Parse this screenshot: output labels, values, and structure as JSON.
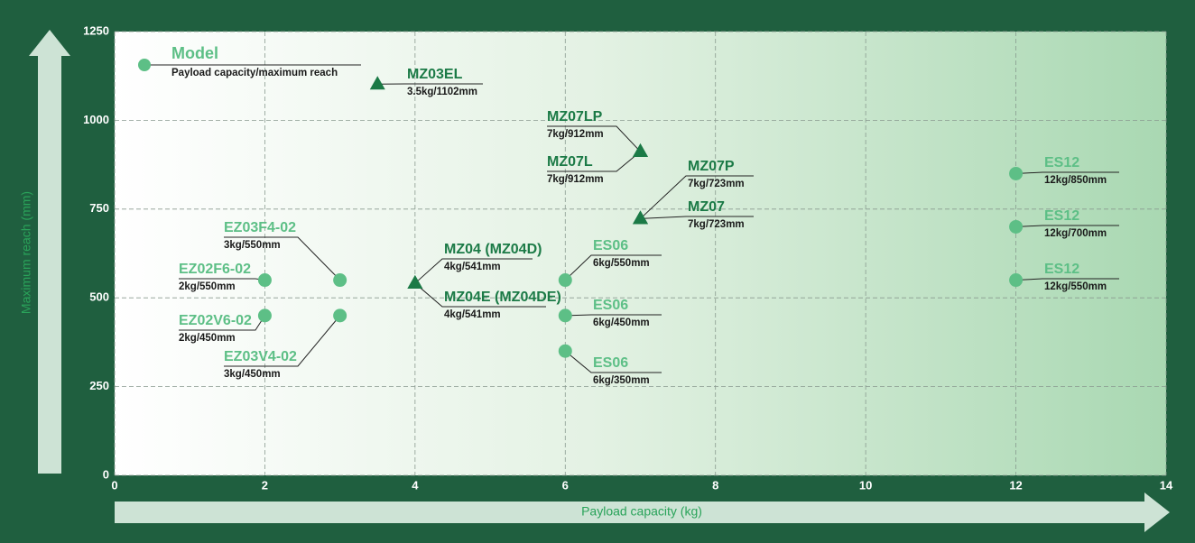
{
  "chart_data": {
    "type": "scatter",
    "xlabel": "Payload capacity (kg)",
    "ylabel": "Maximum reach (mm)",
    "xlim": [
      0,
      14
    ],
    "xticks": [
      0,
      2,
      4,
      6,
      8,
      10,
      12,
      14
    ],
    "ylim": [
      0,
      1250
    ],
    "yticks": [
      0,
      250,
      500,
      750,
      1000,
      1250
    ],
    "grid": true,
    "legend": {
      "title": "Model",
      "subtitle": "Payload capacity/maximum reach"
    },
    "series": [
      {
        "marker": "circle",
        "color": "#5dbf86",
        "x": [
          3,
          2,
          2,
          3,
          6,
          6,
          6,
          12,
          12,
          12
        ],
        "values": [
          550,
          550,
          450,
          450,
          550,
          450,
          350,
          850,
          700,
          550
        ],
        "labels": [
          "EZ03F4-02",
          "EZ02F6-02",
          "EZ02V6-02",
          "EZ03V4-02",
          "ES06",
          "ES06",
          "ES06",
          "ES12",
          "ES12",
          "ES12"
        ],
        "specs": [
          "3kg/550mm",
          "2kg/550mm",
          "2kg/450mm",
          "3kg/450mm",
          "6kg/550mm",
          "6kg/450mm",
          "6kg/350mm",
          "12kg/850mm",
          "12kg/700mm",
          "12kg/550mm"
        ]
      },
      {
        "marker": "triangle",
        "color": "#1b7a46",
        "x": [
          3.5,
          7,
          7,
          7,
          7,
          4,
          4
        ],
        "values": [
          1102,
          912,
          912,
          723,
          723,
          541,
          541
        ],
        "labels": [
          "MZ03EL",
          "MZ07LP",
          "MZ07L",
          "MZ07P",
          "MZ07",
          "MZ04 (MZ04D)",
          "MZ04E (MZ04DE)"
        ],
        "specs": [
          "3.5kg/1102mm",
          "7kg/912mm",
          "7kg/912mm",
          "7kg/723mm",
          "7kg/723mm",
          "4kg/541mm",
          "4kg/541mm"
        ]
      }
    ]
  }
}
